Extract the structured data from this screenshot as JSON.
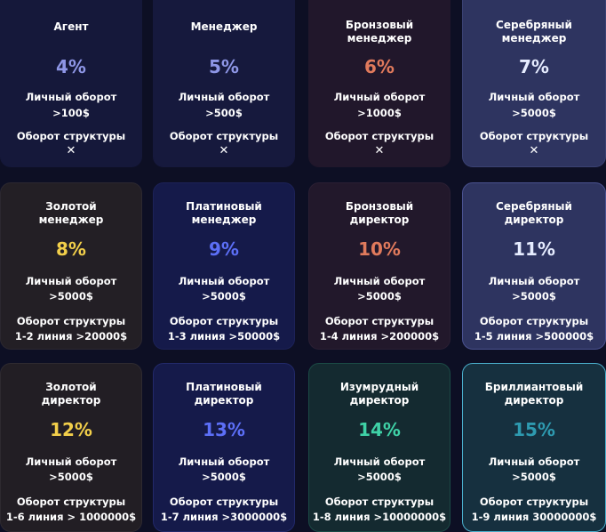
{
  "colors": {
    "background": "#0d0f24"
  },
  "cards": [
    {
      "title1": "Агент",
      "title2": "",
      "percent": "4%",
      "percent_color": "#8e96e6",
      "turnover_label": "Личный оборот",
      "turnover_value": ">100$",
      "structure_label": "Оборот структуры",
      "structure_value": "✕",
      "bg": "#15183a",
      "border": "#15183a"
    },
    {
      "title1": "Менеджер",
      "title2": "",
      "percent": "5%",
      "percent_color": "#8e96e6",
      "turnover_label": "Личный оборот",
      "turnover_value": ">500$",
      "structure_label": "Оборот структуры",
      "structure_value": "✕",
      "bg": "#16193d",
      "border": "#16193d"
    },
    {
      "title1": "Бронзовый",
      "title2": "менеджер",
      "percent": "6%",
      "percent_color": "#e07a5c",
      "turnover_label": "Личный оборот",
      "turnover_value": ">1000$",
      "structure_label": "Оборот структуры",
      "structure_value": "✕",
      "bg": "#21172b",
      "border": "#21172b"
    },
    {
      "title1": "Серебряный",
      "title2": "менеджер",
      "percent": "7%",
      "percent_color": "#e6ecff",
      "turnover_label": "Личный оборот",
      "turnover_value": ">5000$",
      "structure_label": "Оборот структуры",
      "structure_value": "✕",
      "bg": "#2e3460",
      "border": "#3a4172"
    },
    {
      "title1": "Золотой",
      "title2": "менеджер",
      "percent": "8%",
      "percent_color": "#f2cf4a",
      "turnover_label": "Личный оборот",
      "turnover_value": ">5000$",
      "structure_label": "Оборот структуры",
      "structure_value": "1-2 линия >20000$",
      "bg": "#231f25",
      "border": "#2c2830"
    },
    {
      "title1": "Платиновый",
      "title2": "менеджер",
      "percent": "9%",
      "percent_color": "#5c6ff7",
      "turnover_label": "Личный оборот",
      "turnover_value": ">5000$",
      "structure_label": "Оборот структуры",
      "structure_value": "1-3 линия >50000$",
      "bg": "#151a4a",
      "border": "#1c2258"
    },
    {
      "title1": "Бронзовый",
      "title2": "директор",
      "percent": "10%",
      "percent_color": "#e07a5c",
      "turnover_label": "Личный оборот",
      "turnover_value": ">5000$",
      "structure_label": "Оборот структуры",
      "structure_value": "1-4 линия >200000$",
      "bg": "#22182b",
      "border": "#2b1f33"
    },
    {
      "title1": "Серебряный",
      "title2": "директор",
      "percent": "11%",
      "percent_color": "#e6ecff",
      "turnover_label": "Личный оборот",
      "turnover_value": ">5000$",
      "structure_label": "Оборот структуры",
      "structure_value": "1-5 линия >500000$",
      "bg": "#2e3460",
      "border": "#4a5290"
    },
    {
      "title1": "Золотой",
      "title2": "директор",
      "percent": "12%",
      "percent_color": "#f2cf4a",
      "turnover_label": "Личный оборот",
      "turnover_value": ">5000$",
      "structure_label": "Оборот структуры",
      "structure_value": "1-6 линия > 1000000$",
      "bg": "#221e24",
      "border": "#2e2a30"
    },
    {
      "title1": "Платиновый",
      "title2": "директор",
      "percent": "13%",
      "percent_color": "#5c6ff7",
      "turnover_label": "Личный оборот",
      "turnover_value": ">5000$",
      "structure_label": "Оборот структуры",
      "structure_value": "1-7 линия >3000000$",
      "bg": "#151a4a",
      "border": "#22296a"
    },
    {
      "title1": "Изумрудный",
      "title2": "директор",
      "percent": "14%",
      "percent_color": "#3fd1a6",
      "turnover_label": "Личный оборот",
      "turnover_value": ">5000$",
      "structure_label": "Оборот структуры",
      "structure_value": "1-8 линия >10000000$",
      "bg": "#142a30",
      "border": "#1b4a45"
    },
    {
      "title1": "Бриллиантовый",
      "title2": "директор",
      "percent": "15%",
      "percent_color": "#2e9ab0",
      "turnover_label": "Личный оборот",
      "turnover_value": ">5000$",
      "structure_label": "Оборот структуры",
      "structure_value": "1-9 линия 30000000$",
      "bg": "#16303f",
      "border": "#4aaecb"
    }
  ]
}
